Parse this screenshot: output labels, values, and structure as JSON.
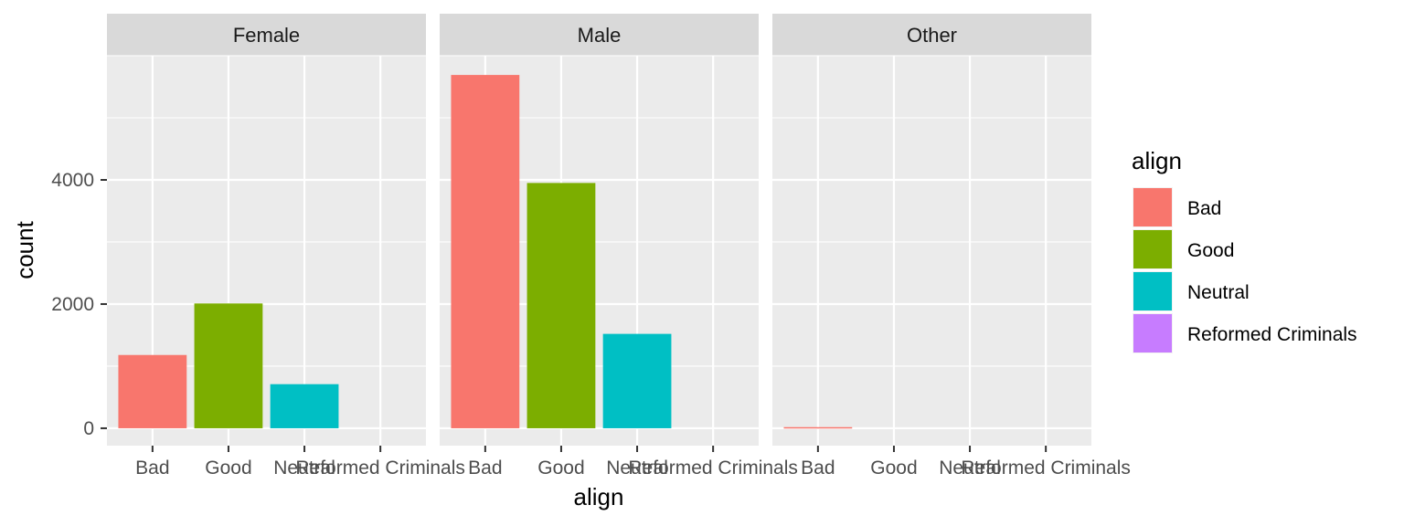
{
  "chart_data": {
    "type": "bar",
    "facet_by": "gender",
    "facets": [
      {
        "label": "Female",
        "values": [
          1180,
          2010,
          710,
          0
        ]
      },
      {
        "label": "Male",
        "values": [
          5690,
          3950,
          1520,
          0
        ]
      },
      {
        "label": "Other",
        "values": [
          18,
          0,
          0,
          0
        ]
      }
    ],
    "categories": [
      "Bad",
      "Good",
      "Neutral",
      "Reformed Criminals"
    ],
    "xlabel": "align",
    "ylabel": "count",
    "ylim": [
      -280,
      6000
    ],
    "yticks": [
      0,
      2000,
      4000
    ],
    "ytick_labels": [
      "0",
      "2000",
      "4000"
    ],
    "grid": true,
    "legend": {
      "title": "align",
      "placement": "right",
      "entries": [
        {
          "label": "Bad",
          "color": "#F8766D"
        },
        {
          "label": "Good",
          "color": "#7CAE00"
        },
        {
          "label": "Neutral",
          "color": "#00BFC4"
        },
        {
          "label": "Reformed Criminals",
          "color": "#C77CFF"
        }
      ]
    },
    "colors": {
      "panel_bg": "#EBEBEB",
      "strip_bg": "#D9D9D9",
      "grid": "#FFFFFF"
    }
  }
}
